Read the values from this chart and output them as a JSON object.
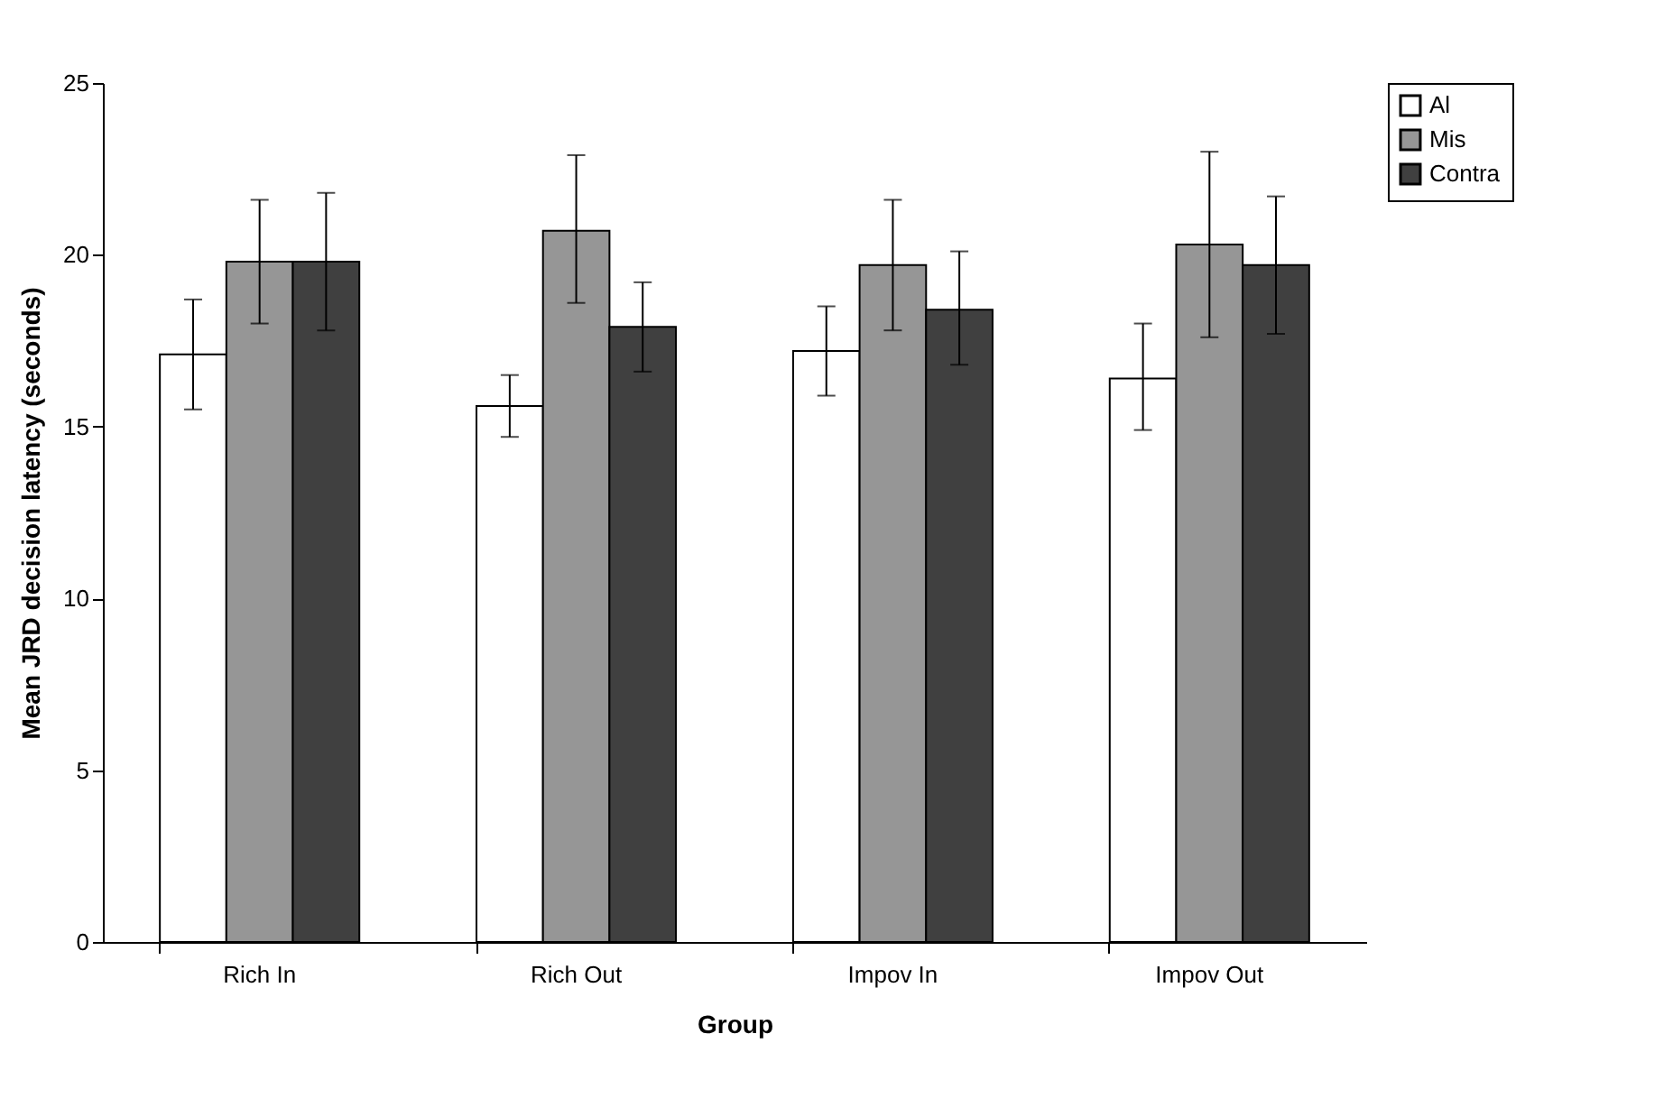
{
  "chart_data": {
    "type": "bar",
    "xlabel": "Group",
    "ylabel": "Mean JRD decision latency (seconds)",
    "categories": [
      "Rich In",
      "Rich Out",
      "Impov In",
      "Impov Out"
    ],
    "series": [
      {
        "name": "Al",
        "color": "#ffffff",
        "values": [
          17.1,
          15.6,
          17.2,
          16.4
        ],
        "errors": [
          [
            15.5,
            18.7
          ],
          [
            14.7,
            16.5
          ],
          [
            15.9,
            18.5
          ],
          [
            14.9,
            18.0
          ]
        ]
      },
      {
        "name": "Mis",
        "color": "#969696",
        "values": [
          19.8,
          20.7,
          19.7,
          20.3
        ],
        "errors": [
          [
            18.0,
            21.6
          ],
          [
            18.6,
            22.9
          ],
          [
            17.8,
            21.6
          ],
          [
            17.6,
            23.0
          ]
        ]
      },
      {
        "name": "Contra",
        "color": "#404040",
        "values": [
          19.8,
          17.9,
          18.4,
          19.7
        ],
        "errors": [
          [
            17.8,
            21.8
          ],
          [
            16.6,
            19.2
          ],
          [
            16.8,
            20.1
          ],
          [
            17.7,
            21.7
          ]
        ]
      }
    ],
    "ylim": [
      0,
      25
    ],
    "yticks": [
      0,
      5,
      10,
      15,
      20,
      25
    ],
    "grid": false,
    "legend": "right"
  }
}
